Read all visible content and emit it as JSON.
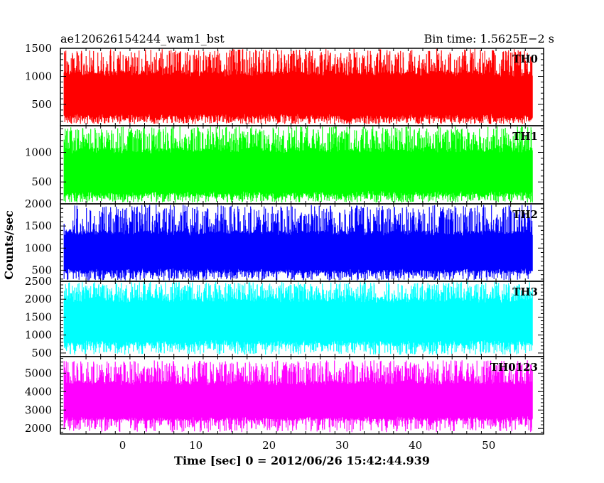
{
  "header": {
    "left_title": "ae120626154244_wam1_bst",
    "right_title": "Bin time: 1.5625E−2 s"
  },
  "chart_data": {
    "type": "line",
    "xlabel": "Time [sec] 0 = 2012/06/26 15:42:44.939",
    "ylabel": "Counts/sec",
    "xlim": [
      -8.5,
      57.5
    ],
    "x_data_range": [
      -8.0,
      56.0
    ],
    "x_ticks": [
      0,
      10,
      20,
      30,
      40,
      50
    ],
    "x_tick_labels": [
      "0",
      "10",
      "20",
      "30",
      "40",
      "50"
    ],
    "grid": false,
    "panels": [
      {
        "label": "TH0",
        "color": "#ff0000",
        "ylim": [
          120,
          1500
        ],
        "y_ticks": [
          500,
          1000,
          1500
        ],
        "y_tick_labels": [
          "500",
          "1000",
          "1500"
        ],
        "band_low": 230,
        "band_high": 1100,
        "spike_low": 150,
        "spike_high": 1490
      },
      {
        "label": "TH1",
        "color": "#00ff00",
        "ylim": [
          130,
          1450
        ],
        "y_ticks": [
          500,
          1000
        ],
        "y_tick_labels": [
          "500",
          "1000"
        ],
        "band_low": 250,
        "band_high": 1080,
        "spike_low": 150,
        "spike_high": 1440
      },
      {
        "label": "TH2",
        "color": "#0000ff",
        "ylim": [
          250,
          2000
        ],
        "y_ticks": [
          500,
          1000,
          1500,
          2000
        ],
        "y_tick_labels": [
          "500",
          "1000",
          "1500",
          "2000"
        ],
        "band_low": 430,
        "band_high": 1400,
        "spike_low": 270,
        "spike_high": 1980
      },
      {
        "label": "TH3",
        "color": "#00ffff",
        "ylim": [
          400,
          2500
        ],
        "y_ticks": [
          500,
          1000,
          1500,
          2000,
          2500
        ],
        "y_tick_labels": [
          "500",
          "1000",
          "1500",
          "2000",
          "2500"
        ],
        "band_low": 700,
        "band_high": 2050,
        "spike_low": 450,
        "spike_high": 2480
      },
      {
        "label": "TH0123",
        "color": "#ff00ff",
        "ylim": [
          1700,
          5900
        ],
        "y_ticks": [
          2000,
          3000,
          4000,
          5000
        ],
        "y_tick_labels": [
          "2000",
          "3000",
          "4000",
          "5000"
        ],
        "band_low": 2400,
        "band_high": 4600,
        "spike_low": 1800,
        "spike_high": 5700
      }
    ]
  }
}
